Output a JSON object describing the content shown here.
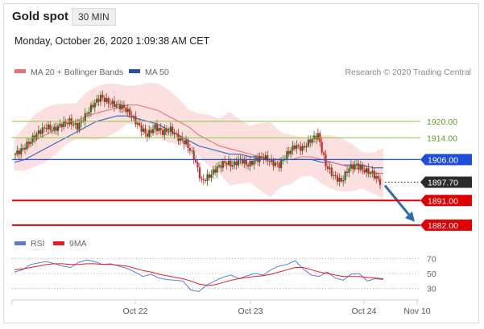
{
  "header": {
    "title": "Gold spot",
    "timeframe": "30 MIN",
    "datetime": "Monday, October 26, 2020 1:09:38 AM CET"
  },
  "legend": {
    "ma20_label": "MA 20 + Bollinger Bands",
    "ma50_label": "MA 50",
    "credit": "Research © 2020 Trading Central"
  },
  "rsi_legend": {
    "rsi_label": "RSI",
    "ma_label": "9MA"
  },
  "colors": {
    "candle_up": "#33691e",
    "candle_down": "#c62828",
    "ma20": "#e57373",
    "ma50": "#3f6cc4",
    "bands": "#fbd6d6",
    "resistance_green": "#8bc34a",
    "pivot_blue": "#1e4fd6",
    "support_red": "#e00000",
    "rsi": "#5b7bd5",
    "rsi_ma": "#e02020"
  },
  "chart_data": [
    {
      "type": "line",
      "title": "Gold spot",
      "y_levels": [
        {
          "label": "1920.00",
          "value": 1920,
          "kind": "resistance"
        },
        {
          "label": "1914.00",
          "value": 1914,
          "kind": "resistance"
        },
        {
          "label": "1906.00",
          "value": 1906,
          "kind": "pivot"
        },
        {
          "label": "1897.70",
          "value": 1897.7,
          "kind": "last"
        },
        {
          "label": "1891.00",
          "value": 1891,
          "kind": "support"
        },
        {
          "label": "1882.00",
          "value": 1882,
          "kind": "support"
        }
      ],
      "ylim": [
        1879,
        1935
      ],
      "x_ticks": [
        "Oct 22",
        "Oct 23",
        "Oct 24",
        "Nov 10"
      ],
      "series": [
        {
          "name": "MA 20 + Bollinger Bands",
          "values": [
            1908,
            1910,
            1913,
            1915,
            1917,
            1919,
            1920,
            1922,
            1923,
            1924,
            1925,
            1926,
            1926,
            1925,
            1924,
            1922,
            1920,
            1918,
            1915,
            1913,
            1911,
            1910,
            1909,
            1908,
            1907,
            1906,
            1906,
            1906,
            1907,
            1907,
            1906,
            1905,
            1904,
            1903,
            1902,
            1901,
            1901
          ]
        },
        {
          "name": "MA 50",
          "values": [
            1905,
            1906,
            1908,
            1910,
            1912,
            1914,
            1916,
            1918,
            1920,
            1921,
            1922,
            1922,
            1921,
            1920,
            1919,
            1917,
            1915,
            1913,
            1911,
            1910,
            1909,
            1908,
            1908,
            1907,
            1907,
            1906,
            1906,
            1906,
            1906,
            1906,
            1905,
            1905,
            1904,
            1904,
            1904,
            1903,
            1903
          ]
        }
      ],
      "price": [
        1908,
        1910,
        1913,
        1916,
        1918,
        1917,
        1919,
        1920,
        1918,
        1922,
        1926,
        1929,
        1927,
        1926,
        1925,
        1922,
        1918,
        1915,
        1918,
        1916,
        1917,
        1914,
        1912,
        1907,
        1898,
        1900,
        1903,
        1905,
        1904,
        1906,
        1904,
        1906,
        1907,
        1905,
        1904,
        1908,
        1911,
        1910,
        1913,
        1915,
        1904,
        1900,
        1898,
        1903,
        1904,
        1902,
        1901,
        1897.7
      ]
    },
    {
      "type": "line",
      "title": "RSI",
      "ylim": [
        20,
        80
      ],
      "y_ticks": [
        70,
        50,
        30
      ],
      "series": [
        {
          "name": "RSI",
          "values": [
            52,
            55,
            62,
            64,
            66,
            63,
            60,
            58,
            65,
            68,
            66,
            62,
            63,
            60,
            57,
            52,
            46,
            49,
            44,
            42,
            41,
            40,
            28,
            26,
            35,
            40,
            45,
            48,
            43,
            47,
            50,
            48,
            55,
            60,
            62,
            67,
            56,
            48,
            46,
            52,
            44,
            41,
            49,
            50,
            40,
            43,
            42
          ]
        },
        {
          "name": "9MA",
          "values": [
            55,
            56,
            58,
            60,
            62,
            63,
            63,
            62,
            62,
            63,
            63,
            62,
            62,
            61,
            60,
            57,
            54,
            52,
            49,
            47,
            45,
            43,
            40,
            36,
            34,
            35,
            38,
            41,
            43,
            45,
            46,
            47,
            49,
            52,
            55,
            58,
            58,
            55,
            52,
            50,
            48,
            46,
            46,
            46,
            45,
            44,
            43
          ]
        }
      ]
    }
  ]
}
